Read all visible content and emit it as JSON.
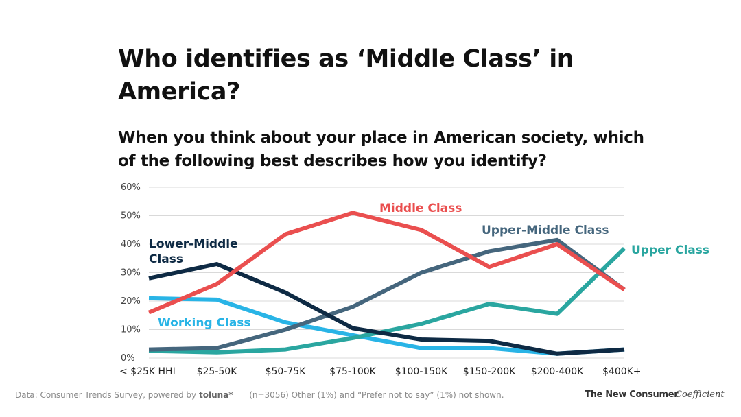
{
  "title": "Who identifies as ‘Middle Class’ in America?",
  "subtitle": "When you think about your place in American society, which of the following best describes how you identify?",
  "chart_data": {
    "type": "line",
    "categories": [
      "< $25K HHI",
      "$25-50K",
      "$50-75K",
      "$75-100K",
      "$100-150K",
      "$150-200K",
      "$200-400K",
      "$400K+"
    ],
    "ylim": [
      0,
      60
    ],
    "yticks": [
      "0%",
      "10%",
      "20%",
      "30%",
      "40%",
      "50%",
      "60%"
    ],
    "ytick_values": [
      0,
      10,
      20,
      30,
      40,
      50,
      60
    ],
    "series": [
      {
        "name": "Working Class",
        "label": "Working Class",
        "color": "#29b4e6",
        "values": [
          21,
          20.5,
          12.5,
          8,
          3.5,
          3.5,
          1.5,
          3
        ]
      },
      {
        "name": "Upper Class",
        "label": "Upper Class",
        "color": "#2aa6a0",
        "values": [
          2.5,
          2,
          3,
          7,
          12,
          19,
          15.5,
          38.5
        ]
      },
      {
        "name": "Upper-Middle Class",
        "label": "Upper-Middle Class",
        "color": "#45667d",
        "values": [
          3,
          3.5,
          10,
          18,
          30,
          37.5,
          41.5,
          24
        ]
      },
      {
        "name": "Lower-Middle Class",
        "label_lines": [
          "Lower-Middle",
          "Class"
        ],
        "color": "#0e2a44",
        "values": [
          28,
          33,
          23,
          10.5,
          6.5,
          6,
          1.5,
          3
        ]
      },
      {
        "name": "Middle Class",
        "label": "Middle Class",
        "color": "#ea4f4f",
        "values": [
          16,
          26,
          43.5,
          51,
          45,
          32,
          40,
          24
        ]
      }
    ]
  },
  "footer": {
    "source": "Data: Consumer Trends Survey, powered by",
    "toluna": "toluna*",
    "note": "(n=3056) Other (1%) and “Prefer not to say” (1%) not shown.",
    "brand1": "The New Consumer",
    "brand2": "Coefficient"
  }
}
